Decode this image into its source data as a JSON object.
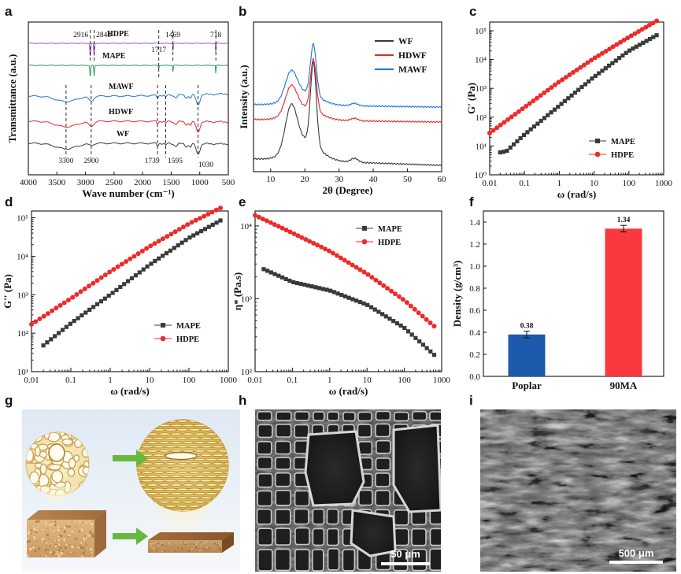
{
  "panels": {
    "a": "a",
    "b": "b",
    "c": "c",
    "d": "d",
    "e": "e",
    "f": "f",
    "g": "g",
    "h": "h",
    "i": "i"
  },
  "colors": {
    "WF": "#3a3a3a",
    "HDWF": "#e8262b",
    "MAWF": "#1e73d6",
    "MAPE": "#2e9a56",
    "HDPE": "#a258d6",
    "rheo_MAPE": "#3a3a3a",
    "rheo_HDPE": "#ee2a2a",
    "bar_poplar": "#1c5aab",
    "bar_90ma": "#f9383f"
  },
  "chart_data": [
    {
      "id": "a",
      "type": "line",
      "title": "",
      "xlabel": "Wave number (cm⁻¹)",
      "ylabel": "Transmittance (a.u.)",
      "xlim": [
        4000,
        500
      ],
      "xticks": [
        4000,
        3500,
        3000,
        2500,
        2000,
        1500,
        1000,
        500
      ],
      "series": [
        {
          "name": "WF",
          "offset": 0
        },
        {
          "name": "HDWF",
          "offset": 1
        },
        {
          "name": "MAWF",
          "offset": 2
        },
        {
          "name": "MAPE",
          "offset": 3
        },
        {
          "name": "HDPE",
          "offset": 4
        }
      ],
      "peaks": [
        {
          "label": "3300",
          "x": 3340,
          "pos": "bottom"
        },
        {
          "label": "2900",
          "x": 2900,
          "pos": "bottom"
        },
        {
          "label": "1739",
          "x": 1739,
          "pos": "bottom"
        },
        {
          "label": "1595",
          "x": 1595,
          "pos": "bottom"
        },
        {
          "label": "1030",
          "x": 1030,
          "pos": "bottom"
        },
        {
          "label": "2916",
          "x": 2916,
          "pos": "top"
        },
        {
          "label": "2848",
          "x": 2848,
          "pos": "top"
        },
        {
          "label": "1717",
          "x": 1717,
          "pos": "top"
        },
        {
          "label": "1469",
          "x": 1469,
          "pos": "top"
        },
        {
          "label": "718",
          "x": 718,
          "pos": "top"
        }
      ]
    },
    {
      "id": "b",
      "type": "line",
      "xlabel": "2θ (Degree)",
      "ylabel": "Intensity (a.u.)",
      "xlim": [
        5,
        60
      ],
      "xticks": [
        10,
        20,
        30,
        40,
        50,
        60
      ],
      "series": [
        {
          "name": "WF"
        },
        {
          "name": "HDWF"
        },
        {
          "name": "MAWF"
        }
      ],
      "peaks_deg": [
        16,
        22.5,
        34.5
      ],
      "legend": "top-right"
    },
    {
      "id": "c",
      "type": "scatter-line",
      "xlabel": "ω (rad/s)",
      "ylabel": "G' (Pa)",
      "xscale": "log",
      "yscale": "log",
      "xlim": [
        0.01,
        1000
      ],
      "ylim": [
        1,
        200000
      ],
      "xticks": [
        "0.01",
        "0.1",
        "1",
        "10",
        "100",
        "1000"
      ],
      "yticks_exp": [
        0,
        1,
        2,
        3,
        4,
        5
      ],
      "series": [
        {
          "name": "MAPE",
          "marker": "square",
          "points": [
            [
              0.02,
              6
            ],
            [
              0.03,
              6.5
            ],
            [
              0.1,
              25
            ],
            [
              1,
              250
            ],
            [
              10,
              2500
            ],
            [
              100,
              20000
            ],
            [
              630,
              70000
            ]
          ]
        },
        {
          "name": "HDPE",
          "marker": "circle",
          "points": [
            [
              0.01,
              28
            ],
            [
              0.1,
              220
            ],
            [
              1,
              1700
            ],
            [
              10,
              11000
            ],
            [
              100,
              60000
            ],
            [
              630,
              220000
            ]
          ]
        }
      ],
      "legend": "bottom-right"
    },
    {
      "id": "d",
      "type": "scatter-line",
      "xlabel": "ω (rad/s)",
      "ylabel": "G'' (Pa)",
      "xscale": "log",
      "yscale": "log",
      "xlim": [
        0.01,
        1000
      ],
      "ylim": [
        10,
        150000
      ],
      "xticks": [
        "0.01",
        "0.1",
        "1",
        "10",
        "100",
        "1000"
      ],
      "yticks_exp": [
        1,
        2,
        3,
        4,
        5
      ],
      "series": [
        {
          "name": "MAPE",
          "marker": "square",
          "points": [
            [
              0.02,
              48
            ],
            [
              0.1,
              180
            ],
            [
              1,
              1000
            ],
            [
              10,
              6000
            ],
            [
              100,
              30000
            ],
            [
              630,
              85000
            ]
          ]
        },
        {
          "name": "HDPE",
          "marker": "circle",
          "points": [
            [
              0.01,
              170
            ],
            [
              0.1,
              800
            ],
            [
              1,
              4000
            ],
            [
              10,
              18000
            ],
            [
              100,
              70000
            ],
            [
              630,
              180000
            ]
          ]
        }
      ],
      "legend": "bottom-right"
    },
    {
      "id": "e",
      "type": "scatter-line",
      "xlabel": "ω (rad/s)",
      "ylabel": "η* (Pa.s)",
      "xscale": "log",
      "yscale": "log",
      "xlim": [
        0.01,
        1000
      ],
      "ylim": [
        100,
        16000
      ],
      "xticks": [
        "0.01",
        "0.1",
        "1",
        "10",
        "100",
        "1000"
      ],
      "yticks_exp": [
        2,
        3,
        4
      ],
      "series": [
        {
          "name": "MAPE",
          "marker": "square",
          "points": [
            [
              0.017,
              2550
            ],
            [
              0.1,
              1700
            ],
            [
              1,
              1300
            ],
            [
              10,
              830
            ],
            [
              100,
              400
            ],
            [
              630,
              170
            ]
          ]
        },
        {
          "name": "HDPE",
          "marker": "circle",
          "points": [
            [
              0.01,
              14000
            ],
            [
              0.1,
              8000
            ],
            [
              1,
              4500
            ],
            [
              10,
              2200
            ],
            [
              100,
              950
            ],
            [
              630,
              420
            ]
          ]
        }
      ],
      "legend": "top-right"
    },
    {
      "id": "f",
      "type": "bar",
      "xlabel": "",
      "ylabel": "Density (g/cm³)",
      "categories": [
        "Poplar",
        "90MA"
      ],
      "values": [
        0.38,
        1.34
      ],
      "errors": [
        0.03,
        0.03
      ],
      "value_labels": [
        "0.38",
        "1.34"
      ],
      "ylim": [
        0.0,
        1.5
      ],
      "yticks": [
        "0.0",
        "0.2",
        "0.4",
        "0.6",
        "0.8",
        "1.0",
        "1.2",
        "1.4"
      ]
    }
  ],
  "images": {
    "h_scale": "50 μm",
    "i_scale": "500 μm"
  }
}
